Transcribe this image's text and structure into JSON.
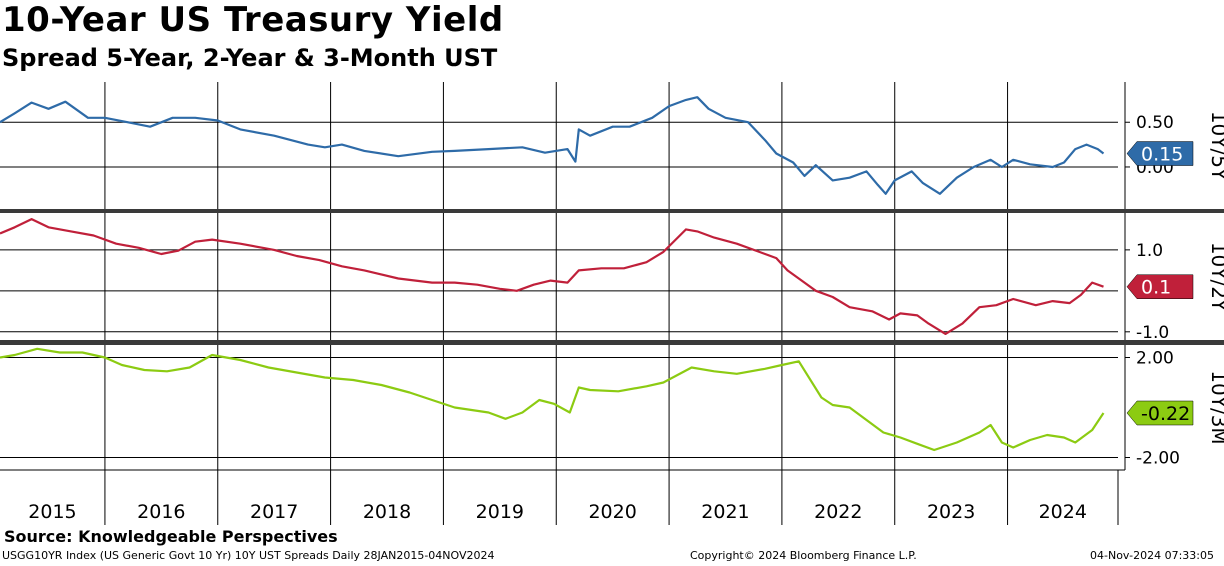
{
  "header": {
    "title": "10-Year US Treasury Yield",
    "subtitle": "Spread 5-Year, 2-Year & 3-Month UST"
  },
  "footer": {
    "source": "Source: Knowledgeable Perspectives",
    "index": "USGG10YR Index (US Generic Govt 10 Yr) 10Y UST Spreads  Daily 28JAN2015-04NOV2024",
    "copyright": "Copyright© 2024 Bloomberg Finance L.P.",
    "timestamp": "04-Nov-2024 07:33:05"
  },
  "chart_data": {
    "type": "line",
    "x_range": [
      2015.07,
      2024.85
    ],
    "x_ticks": [
      "2015",
      "2016",
      "2017",
      "2018",
      "2019",
      "2020",
      "2021",
      "2022",
      "2023",
      "2024"
    ],
    "panels": [
      {
        "name": "10Y/5Y",
        "color": "#2E6BA8",
        "last_value_label": "0.15",
        "ylim": [
          -0.47,
          0.95
        ],
        "y_ticks": [
          {
            "value": 0.5,
            "label": "0.50"
          },
          {
            "value": 0.0,
            "label": "0.00"
          }
        ],
        "points": [
          [
            2015.07,
            0.5
          ],
          [
            2015.2,
            0.6
          ],
          [
            2015.35,
            0.72
          ],
          [
            2015.5,
            0.65
          ],
          [
            2015.65,
            0.73
          ],
          [
            2015.85,
            0.55
          ],
          [
            2016.0,
            0.55
          ],
          [
            2016.2,
            0.5
          ],
          [
            2016.4,
            0.45
          ],
          [
            2016.6,
            0.55
          ],
          [
            2016.8,
            0.55
          ],
          [
            2017.0,
            0.52
          ],
          [
            2017.2,
            0.42
          ],
          [
            2017.5,
            0.35
          ],
          [
            2017.8,
            0.25
          ],
          [
            2017.95,
            0.22
          ],
          [
            2018.1,
            0.25
          ],
          [
            2018.3,
            0.18
          ],
          [
            2018.6,
            0.12
          ],
          [
            2018.9,
            0.17
          ],
          [
            2019.1,
            0.18
          ],
          [
            2019.4,
            0.2
          ],
          [
            2019.7,
            0.22
          ],
          [
            2019.9,
            0.16
          ],
          [
            2020.1,
            0.2
          ],
          [
            2020.17,
            0.06
          ],
          [
            2020.2,
            0.42
          ],
          [
            2020.3,
            0.35
          ],
          [
            2020.5,
            0.45
          ],
          [
            2020.65,
            0.45
          ],
          [
            2020.85,
            0.55
          ],
          [
            2021.0,
            0.68
          ],
          [
            2021.15,
            0.75
          ],
          [
            2021.25,
            0.78
          ],
          [
            2021.35,
            0.65
          ],
          [
            2021.5,
            0.55
          ],
          [
            2021.7,
            0.5
          ],
          [
            2021.85,
            0.3
          ],
          [
            2021.95,
            0.15
          ],
          [
            2022.1,
            0.05
          ],
          [
            2022.2,
            -0.1
          ],
          [
            2022.3,
            0.02
          ],
          [
            2022.45,
            -0.15
          ],
          [
            2022.6,
            -0.12
          ],
          [
            2022.75,
            -0.05
          ],
          [
            2022.85,
            -0.2
          ],
          [
            2022.92,
            -0.3
          ],
          [
            2023.0,
            -0.15
          ],
          [
            2023.15,
            -0.05
          ],
          [
            2023.25,
            -0.18
          ],
          [
            2023.4,
            -0.3
          ],
          [
            2023.55,
            -0.12
          ],
          [
            2023.7,
            0.0
          ],
          [
            2023.85,
            0.08
          ],
          [
            2023.95,
            0.0
          ],
          [
            2024.05,
            0.08
          ],
          [
            2024.2,
            0.03
          ],
          [
            2024.4,
            0.0
          ],
          [
            2024.5,
            0.05
          ],
          [
            2024.6,
            0.2
          ],
          [
            2024.7,
            0.25
          ],
          [
            2024.8,
            0.2
          ],
          [
            2024.85,
            0.15
          ]
        ]
      },
      {
        "name": "10Y/2Y",
        "color": "#C0203A",
        "last_value_label": "0.1",
        "ylim": [
          -1.2,
          1.9
        ],
        "y_ticks": [
          {
            "value": 1.0,
            "label": "1.0"
          },
          {
            "value": -1.0,
            "label": "-1.0"
          }
        ],
        "points": [
          [
            2015.07,
            1.4
          ],
          [
            2015.2,
            1.55
          ],
          [
            2015.35,
            1.75
          ],
          [
            2015.5,
            1.55
          ],
          [
            2015.7,
            1.45
          ],
          [
            2015.9,
            1.35
          ],
          [
            2016.1,
            1.15
          ],
          [
            2016.3,
            1.05
          ],
          [
            2016.5,
            0.9
          ],
          [
            2016.65,
            0.98
          ],
          [
            2016.8,
            1.2
          ],
          [
            2016.95,
            1.25
          ],
          [
            2017.2,
            1.15
          ],
          [
            2017.5,
            1.0
          ],
          [
            2017.7,
            0.85
          ],
          [
            2017.9,
            0.75
          ],
          [
            2018.1,
            0.6
          ],
          [
            2018.3,
            0.5
          ],
          [
            2018.6,
            0.3
          ],
          [
            2018.9,
            0.2
          ],
          [
            2019.1,
            0.2
          ],
          [
            2019.3,
            0.15
          ],
          [
            2019.5,
            0.05
          ],
          [
            2019.65,
            0.0
          ],
          [
            2019.8,
            0.15
          ],
          [
            2019.95,
            0.25
          ],
          [
            2020.1,
            0.2
          ],
          [
            2020.2,
            0.5
          ],
          [
            2020.4,
            0.55
          ],
          [
            2020.6,
            0.55
          ],
          [
            2020.8,
            0.7
          ],
          [
            2020.95,
            0.95
          ],
          [
            2021.15,
            1.5
          ],
          [
            2021.25,
            1.45
          ],
          [
            2021.4,
            1.3
          ],
          [
            2021.6,
            1.15
          ],
          [
            2021.8,
            0.95
          ],
          [
            2021.95,
            0.8
          ],
          [
            2022.05,
            0.5
          ],
          [
            2022.2,
            0.2
          ],
          [
            2022.3,
            0.0
          ],
          [
            2022.45,
            -0.15
          ],
          [
            2022.6,
            -0.4
          ],
          [
            2022.8,
            -0.5
          ],
          [
            2022.95,
            -0.7
          ],
          [
            2023.05,
            -0.55
          ],
          [
            2023.2,
            -0.6
          ],
          [
            2023.3,
            -0.8
          ],
          [
            2023.45,
            -1.05
          ],
          [
            2023.6,
            -0.8
          ],
          [
            2023.75,
            -0.4
          ],
          [
            2023.9,
            -0.35
          ],
          [
            2024.05,
            -0.2
          ],
          [
            2024.25,
            -0.35
          ],
          [
            2024.4,
            -0.25
          ],
          [
            2024.55,
            -0.3
          ],
          [
            2024.65,
            -0.1
          ],
          [
            2024.75,
            0.2
          ],
          [
            2024.85,
            0.1
          ]
        ]
      },
      {
        "name": "10Y/3M",
        "color": "#8CCB12",
        "last_value_label": "-0.22",
        "ylim": [
          -2.5,
          2.5
        ],
        "y_ticks": [
          {
            "value": 2.0,
            "label": "2.00"
          },
          {
            "value": -2.0,
            "label": "-2.00"
          }
        ],
        "points": [
          [
            2015.07,
            2.0
          ],
          [
            2015.2,
            2.1
          ],
          [
            2015.4,
            2.35
          ],
          [
            2015.6,
            2.2
          ],
          [
            2015.8,
            2.2
          ],
          [
            2016.0,
            2.0
          ],
          [
            2016.15,
            1.7
          ],
          [
            2016.35,
            1.5
          ],
          [
            2016.55,
            1.45
          ],
          [
            2016.75,
            1.6
          ],
          [
            2016.95,
            2.1
          ],
          [
            2017.2,
            1.9
          ],
          [
            2017.45,
            1.6
          ],
          [
            2017.7,
            1.4
          ],
          [
            2017.95,
            1.2
          ],
          [
            2018.2,
            1.1
          ],
          [
            2018.45,
            0.9
          ],
          [
            2018.7,
            0.6
          ],
          [
            2018.9,
            0.3
          ],
          [
            2019.1,
            0.0
          ],
          [
            2019.25,
            -0.1
          ],
          [
            2019.4,
            -0.2
          ],
          [
            2019.55,
            -0.45
          ],
          [
            2019.7,
            -0.2
          ],
          [
            2019.85,
            0.3
          ],
          [
            2019.98,
            0.15
          ],
          [
            2020.12,
            -0.2
          ],
          [
            2020.2,
            0.8
          ],
          [
            2020.3,
            0.7
          ],
          [
            2020.55,
            0.65
          ],
          [
            2020.8,
            0.85
          ],
          [
            2020.95,
            1.0
          ],
          [
            2021.2,
            1.6
          ],
          [
            2021.4,
            1.45
          ],
          [
            2021.6,
            1.35
          ],
          [
            2021.85,
            1.55
          ],
          [
            2022.0,
            1.7
          ],
          [
            2022.15,
            1.85
          ],
          [
            2022.35,
            0.4
          ],
          [
            2022.45,
            0.1
          ],
          [
            2022.6,
            0.0
          ],
          [
            2022.75,
            -0.5
          ],
          [
            2022.9,
            -1.0
          ],
          [
            2023.05,
            -1.2
          ],
          [
            2023.2,
            -1.45
          ],
          [
            2023.35,
            -1.7
          ],
          [
            2023.55,
            -1.4
          ],
          [
            2023.75,
            -1.0
          ],
          [
            2023.85,
            -0.7
          ],
          [
            2023.95,
            -1.4
          ],
          [
            2024.05,
            -1.6
          ],
          [
            2024.2,
            -1.3
          ],
          [
            2024.35,
            -1.1
          ],
          [
            2024.5,
            -1.2
          ],
          [
            2024.6,
            -1.4
          ],
          [
            2024.75,
            -0.9
          ],
          [
            2024.85,
            -0.22
          ]
        ]
      }
    ]
  }
}
